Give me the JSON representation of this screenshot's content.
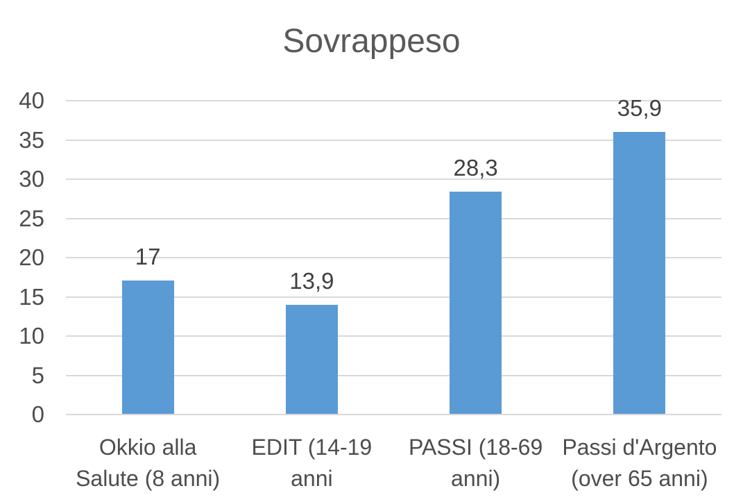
{
  "chart_data": {
    "type": "bar",
    "title": "Sovrappeso",
    "categories": [
      "Okkio alla Salute (8 anni)",
      "EDIT (14-19 anni",
      "PASSI (18-69 anni)",
      "Passi d'Argento (over 65 anni)"
    ],
    "category_lines": [
      [
        "Okkio alla",
        "Salute (8 anni)"
      ],
      [
        "EDIT (14-19",
        "anni"
      ],
      [
        "PASSI (18-69",
        "anni)"
      ],
      [
        "Passi d'Argento",
        "(over 65 anni)"
      ]
    ],
    "values": [
      17,
      13.9,
      28.3,
      35.9
    ],
    "value_labels": [
      "17",
      "13,9",
      "28,3",
      "35,9"
    ],
    "xlabel": "",
    "ylabel": "",
    "ylim": [
      0,
      40
    ],
    "y_ticks": [
      0,
      5,
      10,
      15,
      20,
      25,
      30,
      35,
      40
    ],
    "grid": true,
    "legend": false,
    "colors": {
      "bar": "#5B9BD5",
      "grid": "#D9D9D9",
      "axis_text": "#4D4D4D",
      "value_text": "#404040",
      "title_text": "#595959",
      "background": "#FFFFFF"
    }
  }
}
